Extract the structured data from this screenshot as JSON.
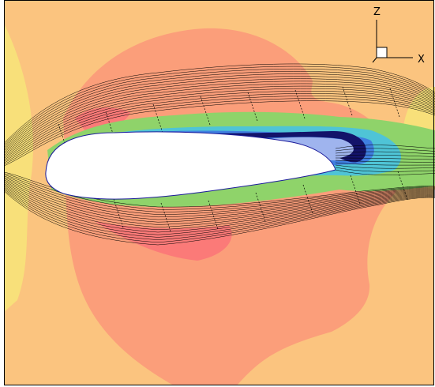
{
  "axes_triad": {
    "vertical_label": "Z",
    "horizontal_label": "X"
  },
  "colors": {
    "background": "#fbc47f",
    "far_field_yellow": "#f8e07a",
    "mid_salmon": "#fb9e7a",
    "high_red": "#fb7a78",
    "green": "#8fd36a",
    "cyan": "#4fc4d6",
    "blue": "#3f7fe0",
    "dark_blue": "#13136a",
    "light_blue": "#9fb4ee",
    "streamline": "#000000",
    "airfoil": "#ffffff"
  }
}
